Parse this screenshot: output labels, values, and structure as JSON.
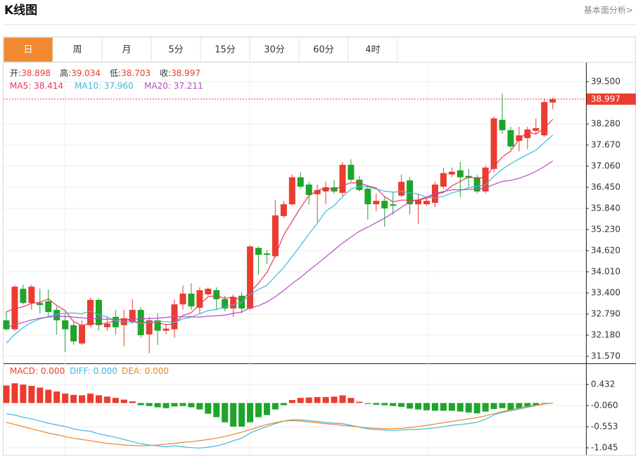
{
  "header": {
    "title": "K线图",
    "link": "基本面分析>"
  },
  "tabs": [
    "日",
    "周",
    "月",
    "5分",
    "15分",
    "30分",
    "60分",
    "4时"
  ],
  "active_tab": 0,
  "chart_data": [
    {
      "type": "candlestick",
      "up_color": "#eb3c2f",
      "down_color": "#1ea52a",
      "readout_labels": [
        "开",
        "高",
        "低",
        "收"
      ],
      "sep": ":",
      "open": [
        32.61,
        32.35,
        33.52,
        33.11,
        33.11,
        33.16,
        32.91,
        32.61,
        32.47,
        31.94,
        32.47,
        33.2,
        32.41,
        32.71,
        32.47,
        32.57,
        32.91,
        32.2,
        32.61,
        32.31,
        32.35,
        33.07,
        33.38,
        32.97,
        33.36,
        33.48,
        33.22,
        32.95,
        33.32,
        32.95,
        34.7,
        34.54,
        34.46,
        35.62,
        35.96,
        36.74,
        36.53,
        36.25,
        36.33,
        36.45,
        36.29,
        37.1,
        36.67,
        36.41,
        35.96,
        36.06,
        35.96,
        36.21,
        36.65,
        35.96,
        35.96,
        36.0,
        36.47,
        36.82,
        36.94,
        36.78,
        36.74,
        36.33,
        36.98,
        38.4,
        38.1,
        37.79,
        37.87,
        38.08,
        37.95,
        38.898
      ],
      "high": [
        32.86,
        33.62,
        33.64,
        33.64,
        33.52,
        33.5,
        33.01,
        32.81,
        32.55,
        32.61,
        33.26,
        33.24,
        32.71,
        32.91,
        32.91,
        33.22,
        32.99,
        32.71,
        32.81,
        32.51,
        33.22,
        33.62,
        33.68,
        33.56,
        33.56,
        33.56,
        33.32,
        33.36,
        33.42,
        34.78,
        34.74,
        34.64,
        36.08,
        36.06,
        36.82,
        36.88,
        36.61,
        36.53,
        36.61,
        36.67,
        37.18,
        37.26,
        36.78,
        36.47,
        36.27,
        36.17,
        36.33,
        36.82,
        36.74,
        36.27,
        36.17,
        36.61,
        37.02,
        37.02,
        37.18,
        36.98,
        36.82,
        37.08,
        38.5,
        39.15,
        38.2,
        38.2,
        38.2,
        38.44,
        39.01,
        39.034
      ],
      "low": [
        32.31,
        32.31,
        33.07,
        32.91,
        32.81,
        32.71,
        32.2,
        31.69,
        31.9,
        31.9,
        32.41,
        32.31,
        32.31,
        32.2,
        31.86,
        32.51,
        32.1,
        31.65,
        31.9,
        32.2,
        32.1,
        32.91,
        32.91,
        32.81,
        33.32,
        32.91,
        32.87,
        32.71,
        32.81,
        32.91,
        33.93,
        34.23,
        34.42,
        35.56,
        35.92,
        36.41,
        35.96,
        35.45,
        35.96,
        36.27,
        36.17,
        36.61,
        36.33,
        35.52,
        35.76,
        35.31,
        35.66,
        36.17,
        35.66,
        35.39,
        35.92,
        35.88,
        36.41,
        36.74,
        36.17,
        36.47,
        36.27,
        36.27,
        36.88,
        37.99,
        37.55,
        37.49,
        37.55,
        37.99,
        37.91,
        38.703
      ],
      "close": [
        32.35,
        33.58,
        33.11,
        33.58,
        33.05,
        32.85,
        32.61,
        32.35,
        32.0,
        32.47,
        33.2,
        32.47,
        32.51,
        32.41,
        32.67,
        32.91,
        32.18,
        32.61,
        32.31,
        32.37,
        33.07,
        33.38,
        33.01,
        33.48,
        33.52,
        33.22,
        32.95,
        33.28,
        32.95,
        34.74,
        34.5,
        34.5,
        35.64,
        35.96,
        36.74,
        36.47,
        36.23,
        36.37,
        36.45,
        36.33,
        37.1,
        36.67,
        36.37,
        35.96,
        36.06,
        35.84,
        35.92,
        36.61,
        35.96,
        36.08,
        36.06,
        36.53,
        36.86,
        36.9,
        36.74,
        36.72,
        36.33,
        37.02,
        38.44,
        38.1,
        37.63,
        37.95,
        38.12,
        38.16,
        38.91,
        38.997
      ],
      "series": [
        {
          "name": "MA5",
          "color": "#e8385c",
          "values": [
            32.85,
            32.95,
            33.0,
            33.1,
            33.13,
            33.23,
            33.04,
            32.89,
            32.57,
            32.46,
            32.53,
            32.5,
            32.53,
            32.61,
            32.65,
            32.59,
            32.54,
            32.56,
            32.54,
            32.48,
            32.51,
            32.75,
            32.83,
            33.06,
            33.29,
            33.32,
            33.24,
            33.29,
            33.18,
            33.43,
            33.68,
            33.99,
            34.47,
            35.07,
            35.47,
            35.86,
            36.21,
            36.35,
            36.45,
            36.37,
            36.5,
            36.58,
            36.58,
            36.49,
            36.43,
            36.18,
            36.03,
            36.08,
            36.08,
            36.08,
            36.13,
            36.25,
            36.3,
            36.49,
            36.62,
            36.75,
            36.71,
            36.74,
            37.05,
            37.32,
            37.5,
            37.83,
            38.05,
            37.99,
            38.15,
            38.414
          ]
        },
        {
          "name": "MA10",
          "color": "#3fb9dc",
          "values": [
            31.95,
            32.2,
            32.4,
            32.55,
            32.65,
            32.72,
            32.78,
            32.82,
            32.82,
            32.8,
            32.88,
            32.77,
            32.71,
            32.59,
            32.56,
            32.56,
            32.52,
            32.55,
            32.58,
            32.57,
            32.55,
            32.65,
            32.7,
            32.8,
            32.89,
            32.92,
            33.0,
            33.06,
            33.12,
            33.36,
            33.5,
            33.62,
            33.88,
            34.13,
            34.45,
            34.77,
            35.1,
            35.41,
            35.76,
            35.92,
            36.18,
            36.4,
            36.47,
            36.47,
            36.4,
            36.34,
            36.31,
            36.33,
            36.29,
            36.26,
            36.16,
            36.14,
            36.19,
            36.29,
            36.35,
            36.44,
            36.48,
            36.52,
            36.77,
            36.97,
            37.13,
            37.27,
            37.4,
            37.52,
            37.74,
            37.96
          ]
        },
        {
          "name": "MA20",
          "color": "#b54fc0",
          "values": [
            32.4,
            32.48,
            32.55,
            32.62,
            32.67,
            32.7,
            32.72,
            32.72,
            32.7,
            32.68,
            32.66,
            32.65,
            32.64,
            32.63,
            32.63,
            32.64,
            32.65,
            32.66,
            32.67,
            32.69,
            32.72,
            32.71,
            32.71,
            32.7,
            32.73,
            32.74,
            32.76,
            32.81,
            32.85,
            32.97,
            33.03,
            33.14,
            33.29,
            33.47,
            33.67,
            33.85,
            34.05,
            34.24,
            34.44,
            34.64,
            34.84,
            35.01,
            35.18,
            35.3,
            35.43,
            35.56,
            35.71,
            35.87,
            36.03,
            36.09,
            36.17,
            36.27,
            36.33,
            36.38,
            36.38,
            36.39,
            36.4,
            36.43,
            36.53,
            36.62,
            36.65,
            36.71,
            36.8,
            36.91,
            37.05,
            37.211
          ]
        }
      ],
      "series_sep": ": ",
      "series_readout": [
        "38.414",
        "37.960",
        "37.211"
      ],
      "ylim": [
        31.387,
        40.029
      ],
      "yticks": [
        {
          "value": 39.5,
          "label": "39.500"
        },
        {
          "value": 38.28,
          "label": "38.280"
        },
        {
          "value": 37.67,
          "label": "37.670"
        },
        {
          "value": 37.06,
          "label": "37.060"
        },
        {
          "value": 36.45,
          "label": "36.450"
        },
        {
          "value": 35.84,
          "label": "35.840"
        },
        {
          "value": 35.23,
          "label": "35.230"
        },
        {
          "value": 34.62,
          "label": "34.620"
        },
        {
          "value": 34.01,
          "label": "34.010"
        },
        {
          "value": 33.4,
          "label": "33.400"
        },
        {
          "value": 32.79,
          "label": "32.790"
        },
        {
          "value": 32.18,
          "label": "32.180"
        },
        {
          "value": 31.57,
          "label": "31.570"
        }
      ],
      "grid": true
    },
    {
      "type": "macd",
      "series": [
        {
          "name": "MACD",
          "kind": "bar",
          "color": "#eb3c2f",
          "down_color": "#1ea52a",
          "values": [
            0.41,
            0.46,
            0.43,
            0.4,
            0.36,
            0.31,
            0.27,
            0.22,
            0.19,
            0.18,
            0.22,
            0.18,
            0.15,
            0.12,
            0.08,
            0.04,
            -0.05,
            -0.07,
            -0.1,
            -0.12,
            -0.08,
            -0.07,
            -0.1,
            -0.15,
            -0.25,
            -0.33,
            -0.45,
            -0.55,
            -0.55,
            -0.45,
            -0.33,
            -0.28,
            -0.15,
            -0.05,
            0.07,
            0.12,
            0.13,
            0.14,
            0.14,
            0.15,
            0.18,
            0.12,
            0.03,
            -0.02,
            -0.04,
            -0.05,
            -0.07,
            -0.09,
            -0.13,
            -0.15,
            -0.17,
            -0.18,
            -0.18,
            -0.18,
            -0.2,
            -0.22,
            -0.24,
            -0.2,
            -0.14,
            -0.12,
            -0.16,
            -0.12,
            -0.09,
            -0.05,
            -0.01,
            0.0
          ]
        },
        {
          "name": "DIFF",
          "kind": "line",
          "color": "#3fb9dc",
          "values": [
            -0.25,
            -0.28,
            -0.33,
            -0.37,
            -0.42,
            -0.47,
            -0.51,
            -0.55,
            -0.6,
            -0.64,
            -0.66,
            -0.72,
            -0.76,
            -0.8,
            -0.85,
            -0.9,
            -0.95,
            -0.98,
            -1.0,
            -1.02,
            -1.0,
            -1.02,
            -1.04,
            -1.05,
            -1.03,
            -1.0,
            -0.95,
            -0.88,
            -0.82,
            -0.7,
            -0.62,
            -0.55,
            -0.48,
            -0.42,
            -0.39,
            -0.39,
            -0.41,
            -0.43,
            -0.45,
            -0.47,
            -0.48,
            -0.52,
            -0.56,
            -0.6,
            -0.62,
            -0.63,
            -0.64,
            -0.63,
            -0.62,
            -0.61,
            -0.6,
            -0.58,
            -0.55,
            -0.52,
            -0.5,
            -0.48,
            -0.45,
            -0.38,
            -0.28,
            -0.22,
            -0.18,
            -0.14,
            -0.1,
            -0.06,
            -0.02,
            0.0
          ]
        },
        {
          "name": "DEA",
          "kind": "line",
          "color": "#e8872a",
          "values": [
            -0.45,
            -0.5,
            -0.55,
            -0.6,
            -0.65,
            -0.7,
            -0.74,
            -0.78,
            -0.82,
            -0.85,
            -0.88,
            -0.91,
            -0.94,
            -0.96,
            -0.98,
            -0.99,
            -1.0,
            -0.99,
            -0.98,
            -0.96,
            -0.94,
            -0.92,
            -0.9,
            -0.88,
            -0.85,
            -0.82,
            -0.78,
            -0.73,
            -0.68,
            -0.62,
            -0.56,
            -0.5,
            -0.46,
            -0.42,
            -0.41,
            -0.42,
            -0.44,
            -0.46,
            -0.48,
            -0.5,
            -0.52,
            -0.54,
            -0.56,
            -0.58,
            -0.59,
            -0.6,
            -0.6,
            -0.59,
            -0.57,
            -0.55,
            -0.52,
            -0.49,
            -0.46,
            -0.43,
            -0.4,
            -0.37,
            -0.34,
            -0.3,
            -0.25,
            -0.2,
            -0.16,
            -0.12,
            -0.08,
            -0.05,
            -0.02,
            0.0
          ]
        }
      ],
      "series_sep": ": ",
      "series_readout": [
        "0.000",
        "0.000",
        "0.000"
      ],
      "ylim": [
        -1.193,
        0.909
      ],
      "yticks": [
        0.432,
        {
          "value": -0.06,
          "label": "-0.060"
        },
        -0.553,
        -1.045
      ],
      "grid": true
    }
  ]
}
